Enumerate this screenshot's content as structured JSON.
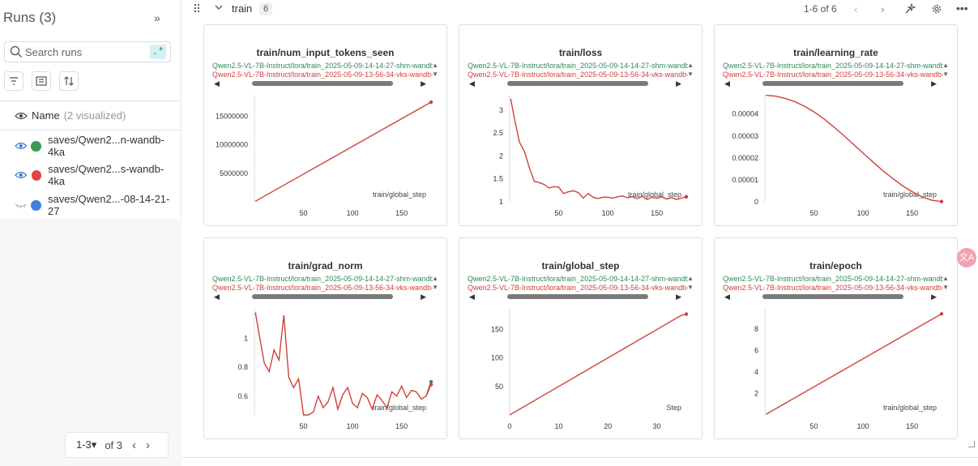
{
  "sidebar": {
    "title": "Runs (3)",
    "collapse_icon": "double-chevron-right-icon",
    "search": {
      "placeholder": "Search runs",
      "value": "",
      "regex_label": ".*"
    },
    "name_header": {
      "label": "Name",
      "count": "(2 visualized)"
    },
    "runs": [
      {
        "label": "saves/Qwen2...n-wandb-4ka",
        "color": "#3a9a52",
        "visible": true
      },
      {
        "label": "saves/Qwen2...s-wandb-4ka",
        "color": "#e0443e",
        "visible": true
      },
      {
        "label": "saves/Qwen2...-08-14-21-27",
        "color": "#3f7fd9",
        "visible": false
      }
    ],
    "pager": {
      "range": "1-3",
      "of": "of 3"
    }
  },
  "section": {
    "title": "train",
    "count": "6",
    "pages": "1-6 of 6"
  },
  "legend": {
    "green_long": "Qwen2.5-VL-7B-Instruct/lora/train_2025-05-09-14-14-27-shm-wandb-4ka",
    "red_long": "Qwen2.5-VL-7B-Instruct/lora/train_2025-05-09-13-56-34-vks-wandb-4ka",
    "green_color": "#2e8b57",
    "red_color": "#d0403a"
  },
  "chart_data": [
    {
      "type": "line",
      "title": "train/num_input_tokens_seen",
      "xlabel": "train/global_step",
      "xlim": [
        0,
        180
      ],
      "ylim": [
        0,
        18500000
      ],
      "xticks": [
        50,
        100,
        150
      ],
      "yticks": [
        5000000,
        10000000,
        15000000
      ],
      "ytick_labels": [
        "5000000",
        "10000000",
        "15000000"
      ],
      "series": [
        {
          "name": "Qwen2.5-VL-7B-Instruct/lora/train_2025-05-09-13-56-34-vks-wandb-4ka",
          "x": [
            1,
            180
          ],
          "y": [
            100000,
            17500000
          ]
        }
      ]
    },
    {
      "type": "line",
      "title": "train/loss",
      "xlabel": "train/global_step",
      "xlim": [
        0,
        180
      ],
      "ylim": [
        1,
        3.3
      ],
      "xticks": [
        50,
        100,
        150
      ],
      "yticks": [
        1,
        1.5,
        2,
        2.5,
        3
      ],
      "ytick_labels": [
        "1",
        "1.5",
        "2",
        "2.5",
        "3"
      ],
      "series": [
        {
          "name": "Qwen2.5-VL-7B-Instruct/lora/train_2025-05-09-13-56-34-vks-wandb-4ka",
          "x": [
            1,
            5,
            10,
            15,
            20,
            25,
            30,
            35,
            40,
            45,
            50,
            55,
            60,
            65,
            70,
            75,
            80,
            85,
            90,
            95,
            100,
            105,
            110,
            115,
            120,
            125,
            130,
            135,
            140,
            145,
            150,
            155,
            160,
            165,
            170,
            175,
            180
          ],
          "y": [
            3.25,
            2.8,
            2.3,
            2.1,
            1.75,
            1.45,
            1.42,
            1.38,
            1.3,
            1.33,
            1.32,
            1.18,
            1.22,
            1.24,
            1.2,
            1.08,
            1.18,
            1.1,
            1.07,
            1.1,
            1.1,
            1.08,
            1.11,
            1.13,
            1.09,
            1.11,
            1.07,
            1.12,
            1.05,
            1.1,
            1.08,
            1.11,
            1.06,
            1.09,
            1.05,
            1.08,
            1.11
          ]
        }
      ]
    },
    {
      "type": "line",
      "title": "train/learning_rate",
      "xlabel": "train/global_step",
      "xlim": [
        0,
        180
      ],
      "ylim": [
        0,
        4.8e-05
      ],
      "xticks": [
        50,
        100,
        150
      ],
      "yticks": [
        0,
        1e-05,
        2e-05,
        3e-05,
        4e-05
      ],
      "ytick_labels": [
        "0",
        "0.00001",
        "0.00002",
        "0.00003",
        "0.00004"
      ],
      "series": [
        {
          "name": "Qwen2.5-VL-7B-Instruct/lora/train_2025-05-09-13-56-34-vks-wandb-4ka",
          "x": [
            1,
            10,
            20,
            30,
            40,
            50,
            60,
            70,
            80,
            90,
            100,
            110,
            120,
            130,
            140,
            150,
            160,
            170,
            180
          ],
          "y": [
            4.85e-05,
            4.82e-05,
            4.72e-05,
            4.57e-05,
            4.36e-05,
            4.1e-05,
            3.78e-05,
            3.42e-05,
            3.03e-05,
            2.63e-05,
            2.22e-05,
            1.82e-05,
            1.43e-05,
            1.07e-05,
            7.4e-06,
            4.6e-06,
            2.3e-06,
            7e-07,
            1e-07
          ]
        }
      ]
    },
    {
      "type": "line",
      "title": "train/grad_norm",
      "xlabel": "train/global_step",
      "xlim": [
        0,
        180
      ],
      "ylim": [
        0.47,
        1.2
      ],
      "xticks": [
        50,
        100,
        150
      ],
      "yticks": [
        0.6,
        0.8,
        1
      ],
      "ytick_labels": [
        "0.6",
        "0.8",
        "1"
      ],
      "series": [
        {
          "name": "Qwen2.5-VL-7B-Instruct/lora/train_2025-05-09-14-14-27-shm-wandb-4ka",
          "x": [
            175,
            180
          ],
          "y": [
            0.6,
            0.7
          ]
        },
        {
          "name": "Qwen2.5-VL-7B-Instruct/lora/train_2025-05-09-13-56-34-vks-wandb-4ka",
          "x": [
            1,
            5,
            10,
            15,
            20,
            25,
            30,
            35,
            40,
            45,
            50,
            55,
            60,
            65,
            70,
            75,
            80,
            85,
            90,
            95,
            100,
            105,
            110,
            115,
            120,
            125,
            130,
            135,
            140,
            145,
            150,
            155,
            160,
            165,
            170,
            175,
            180
          ],
          "y": [
            1.18,
            1.02,
            0.83,
            0.77,
            0.92,
            0.85,
            1.16,
            0.73,
            0.66,
            0.72,
            0.47,
            0.47,
            0.49,
            0.6,
            0.52,
            0.56,
            0.66,
            0.51,
            0.61,
            0.66,
            0.55,
            0.52,
            0.62,
            0.59,
            0.51,
            0.61,
            0.57,
            0.52,
            0.63,
            0.6,
            0.67,
            0.59,
            0.64,
            0.63,
            0.58,
            0.6,
            0.68
          ]
        }
      ]
    },
    {
      "type": "line",
      "title": "train/global_step",
      "xlabel": "Step",
      "xlim": [
        0,
        36
      ],
      "ylim": [
        0,
        185
      ],
      "xticks": [
        0,
        10,
        20,
        30
      ],
      "yticks": [
        50,
        100,
        150
      ],
      "ytick_labels": [
        "50",
        "100",
        "150"
      ],
      "series": [
        {
          "name": "Qwen2.5-VL-7B-Instruct/lora/train_2025-05-09-13-56-34-vks-wandb-4ka",
          "x": [
            0,
            35,
            36
          ],
          "y": [
            0,
            175,
            177
          ]
        }
      ]
    },
    {
      "type": "line",
      "title": "train/epoch",
      "xlabel": "train/global_step",
      "xlim": [
        0,
        180
      ],
      "ylim": [
        0,
        9.8
      ],
      "xticks": [
        50,
        100,
        150
      ],
      "yticks": [
        2,
        4,
        6,
        8
      ],
      "ytick_labels": [
        "2",
        "4",
        "6",
        "8"
      ],
      "series": [
        {
          "name": "Qwen2.5-VL-7B-Instruct/lora/train_2025-05-09-13-56-34-vks-wandb-4ka",
          "x": [
            1,
            180
          ],
          "y": [
            0.05,
            9.4
          ]
        }
      ]
    }
  ]
}
